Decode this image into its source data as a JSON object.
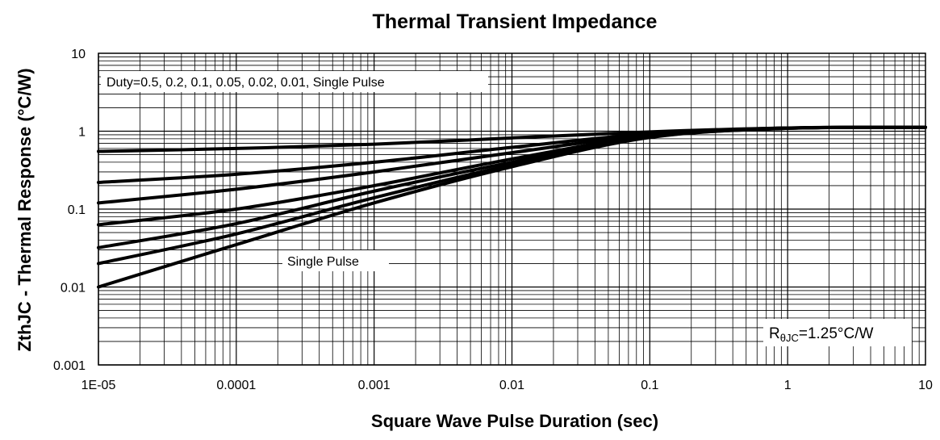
{
  "chart_data": {
    "type": "line",
    "title": "Thermal Transient Impedance",
    "xlabel": "Square Wave Pulse Duration (sec)",
    "ylabel": "ZthJC - Thermal Response (°C/W)",
    "xscale": "log",
    "yscale": "log",
    "xlim": [
      1e-05,
      10
    ],
    "ylim": [
      0.001,
      10
    ],
    "x_tick_labels": [
      "1E-05",
      "0.0001",
      "0.001",
      "0.01",
      "0.1",
      "1",
      "10"
    ],
    "y_tick_labels": [
      "0.001",
      "0.01",
      "0.1",
      "1",
      "10"
    ],
    "grid": true,
    "x": [
      1e-05,
      0.0001,
      0.001,
      0.01,
      0.1,
      1,
      10
    ],
    "series": [
      {
        "values": [
          0.55,
          0.6,
          0.68,
          0.82,
          0.98,
          1.1,
          1.12
        ]
      },
      {
        "values": [
          0.22,
          0.28,
          0.4,
          0.62,
          0.93,
          1.1,
          1.12
        ]
      },
      {
        "values": [
          0.12,
          0.18,
          0.3,
          0.53,
          0.9,
          1.1,
          1.12
        ]
      },
      {
        "values": [
          0.063,
          0.1,
          0.2,
          0.44,
          0.87,
          1.09,
          1.12
        ]
      },
      {
        "values": [
          0.032,
          0.065,
          0.17,
          0.4,
          0.85,
          1.09,
          1.12
        ]
      },
      {
        "values": [
          0.02,
          0.048,
          0.14,
          0.37,
          0.84,
          1.09,
          1.12
        ]
      },
      {
        "values": [
          0.01,
          0.035,
          0.12,
          0.35,
          0.83,
          1.09,
          1.12
        ]
      }
    ],
    "annotations": {
      "duty_label": "Duty=0.5, 0.2, 0.1, 0.05, 0.02, 0.01, Single Pulse",
      "single_pulse_label": "Single Pulse",
      "rth_prefix": "R",
      "rth_subscript": "θJC",
      "rth_value": "=1.25°C/W"
    }
  }
}
